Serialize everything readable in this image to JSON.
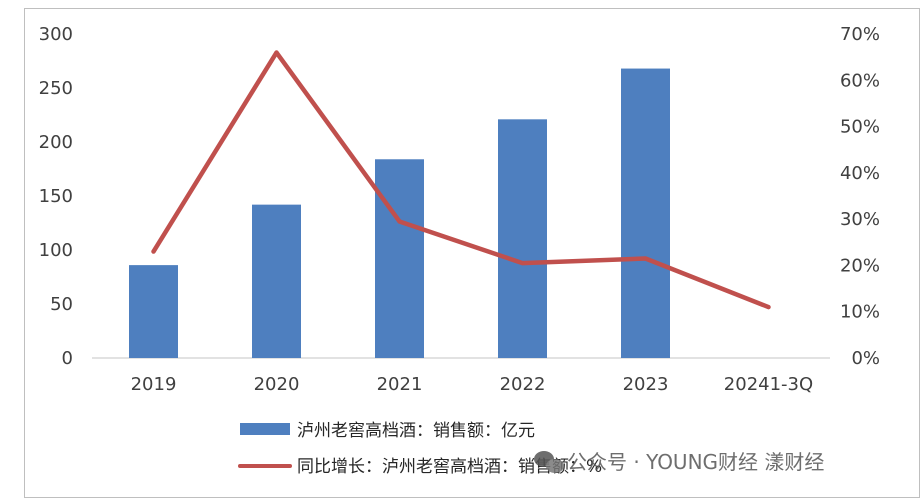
{
  "chart_data": {
    "type": "bar+line",
    "categories": [
      "2019",
      "2020",
      "2021",
      "2022",
      "2023",
      "20241-3Q"
    ],
    "bar_series": {
      "name": "泸州老窖高档酒：销售额：亿元",
      "values": [
        86,
        142,
        184,
        221,
        268,
        null
      ],
      "color": "#4e7fbf"
    },
    "line_series": {
      "name": "同比增长：泸州老窖高档酒：销售额：%",
      "values": [
        0.23,
        0.66,
        0.295,
        0.205,
        0.215,
        0.11
      ],
      "color": "#c0504d"
    },
    "y_left": {
      "ticks": [
        "0",
        "50",
        "100",
        "150",
        "200",
        "250",
        "300"
      ],
      "ylim": [
        0,
        300
      ]
    },
    "y_right": {
      "ticks": [
        "0%",
        "10%",
        "20%",
        "30%",
        "40%",
        "50%",
        "60%",
        "70%"
      ],
      "ylim": [
        0,
        0.7
      ]
    },
    "legend_placement": "bottom",
    "grid": false
  },
  "watermark": {
    "icon": "wechat-icon",
    "text": "公众号 · YOUNG财经 漾财经"
  }
}
